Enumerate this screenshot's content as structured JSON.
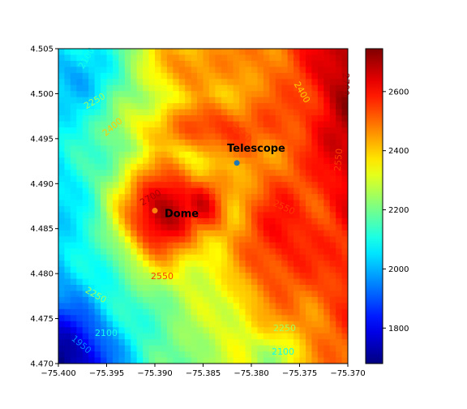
{
  "chart_data": {
    "type": "heatmap",
    "colormap": "jet",
    "x_ticks": [
      "−75.400",
      "−75.395",
      "−75.390",
      "−75.385",
      "−75.380",
      "−75.375",
      "−75.370"
    ],
    "y_ticks": [
      "4.505",
      "4.500",
      "4.495",
      "4.490",
      "4.485",
      "4.480",
      "4.475",
      "4.470"
    ],
    "xlim": [
      -75.4,
      -75.37
    ],
    "ylim": [
      4.47,
      4.505
    ],
    "color_range": [
      1680,
      2745
    ],
    "colorbar_ticks": [
      "2600",
      "2400",
      "2200",
      "2000",
      "1800"
    ],
    "colorbar_values": [
      2600,
      2400,
      2200,
      2000,
      1800
    ],
    "contour_levels": [
      1950,
      2100,
      2250,
      2400,
      2550,
      2700
    ],
    "contour_label_text": {
      "l2100": "2100",
      "l2250": "2250",
      "l2400": "2400",
      "l2550": "2550",
      "l2700": "2700",
      "l1950": "1950"
    },
    "peaks": [
      {
        "x": -75.3895,
        "y": 4.4868,
        "z": 2740,
        "sx": 0.0032,
        "sy": 0.004
      },
      {
        "x": -75.3855,
        "y": 4.4875,
        "z": 2650,
        "sx": 0.0022,
        "sy": 0.0026
      },
      {
        "x": -75.386,
        "y": 4.496,
        "z": 2560,
        "sx": 0.005,
        "sy": 0.0022
      },
      {
        "x": -75.378,
        "y": 4.4835,
        "z": 2620,
        "sx": 0.003,
        "sy": 0.005
      },
      {
        "x": -75.3705,
        "y": 4.4975,
        "z": 2720,
        "sx": 0.0025,
        "sy": 0.007
      },
      {
        "x": -75.372,
        "y": 4.48,
        "z": 2580,
        "sx": 0.0025,
        "sy": 0.005
      },
      {
        "x": -75.376,
        "y": 4.502,
        "z": 2500,
        "sx": 0.003,
        "sy": 0.003
      },
      {
        "x": -75.387,
        "y": 4.503,
        "z": 2500,
        "sx": 0.003,
        "sy": 0.0025
      }
    ],
    "annotations": [
      {
        "text": "Telescope",
        "x": -75.3815,
        "y": 4.4923,
        "marker_color": "#1f77b4"
      },
      {
        "text": "Dome",
        "x": -75.39,
        "y": 4.487,
        "marker_color": "#ff7f0e"
      }
    ]
  }
}
